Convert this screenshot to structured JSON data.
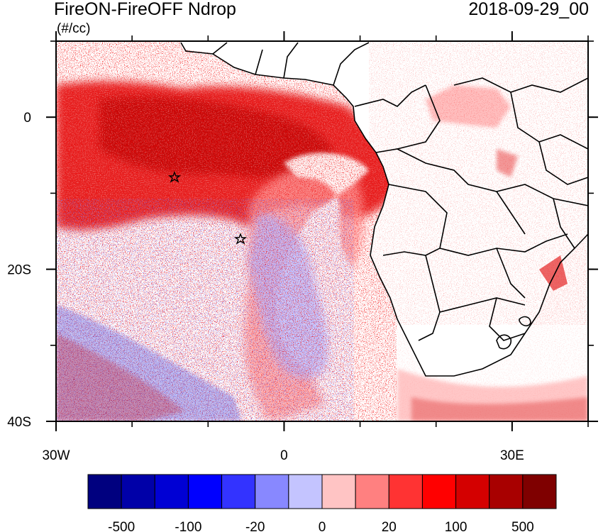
{
  "title": "FireON-FireOFF Ndrop",
  "timestamp": "2018-09-29_00",
  "units": "(#/cc)",
  "map": {
    "lon_labels": [
      {
        "lon": -30,
        "label": "30W"
      },
      {
        "lon": 0,
        "label": "0"
      },
      {
        "lon": 30,
        "label": "30E"
      }
    ],
    "lat_labels": [
      {
        "lat": 0,
        "label": "0"
      },
      {
        "lat": -20,
        "label": "20S"
      },
      {
        "lat": -40,
        "label": "40S"
      }
    ],
    "extent": {
      "lon_min": -30,
      "lon_max": 40,
      "lat_min": -40,
      "lat_max": 10
    },
    "markers": [
      {
        "type": "star",
        "lon": -14.5,
        "lat": -8
      },
      {
        "type": "star",
        "lon": -6,
        "lat": -16
      }
    ]
  },
  "colorbar": {
    "colors": [
      "#00007f",
      "#0000a8",
      "#0000d4",
      "#0000ff",
      "#3333ff",
      "#8888ff",
      "#c4c4ff",
      "#ffc4c4",
      "#ff8080",
      "#ff3333",
      "#ff0000",
      "#d40000",
      "#a80000",
      "#7f0000"
    ],
    "labels": [
      "-500",
      "-100",
      "-20",
      "0",
      "20",
      "100",
      "500"
    ]
  },
  "legend_colors": {
    "positive": "#e60000",
    "negative": "#3030f0",
    "land": "#ffffff",
    "coast": "#000000"
  }
}
